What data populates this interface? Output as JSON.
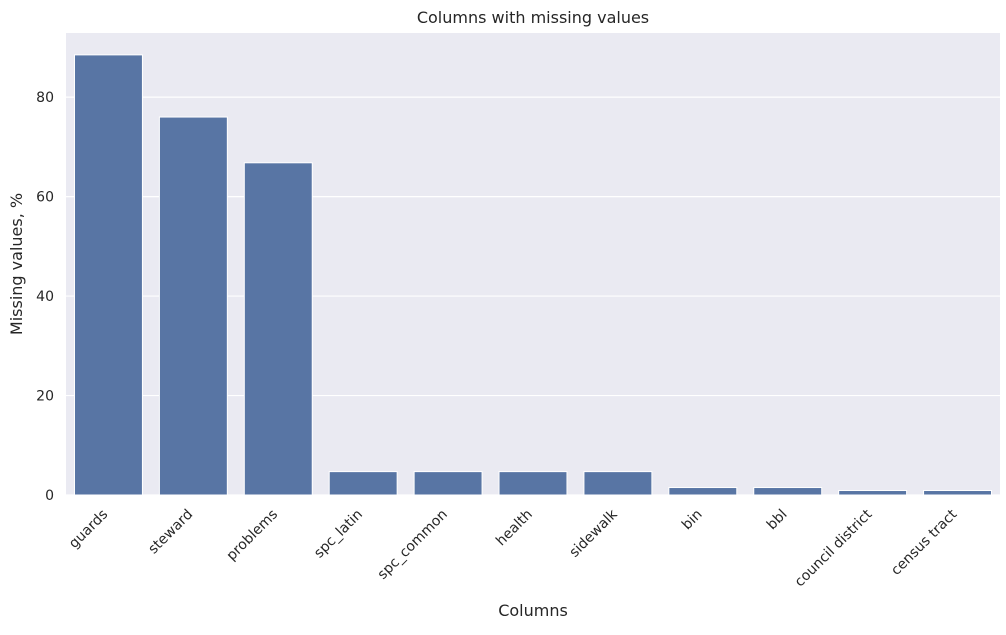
{
  "chart_data": {
    "type": "bar",
    "title": "Columns with missing values",
    "xlabel": "Columns",
    "ylabel": "Missing values, %",
    "categories": [
      "guards",
      "steward",
      "problems",
      "spc_latin",
      "spc_common",
      "health",
      "sidewalk",
      "bin",
      "bbl",
      "council district",
      "census tract"
    ],
    "values": [
      88.5,
      76.0,
      66.8,
      4.7,
      4.7,
      4.7,
      4.7,
      1.5,
      1.5,
      0.9,
      0.9
    ],
    "yticks": [
      0,
      20,
      40,
      60,
      80
    ],
    "ylim": [
      0,
      92.9
    ],
    "grid": true,
    "bar_color": "#5875a4",
    "background_color": "#eaeaf2"
  }
}
